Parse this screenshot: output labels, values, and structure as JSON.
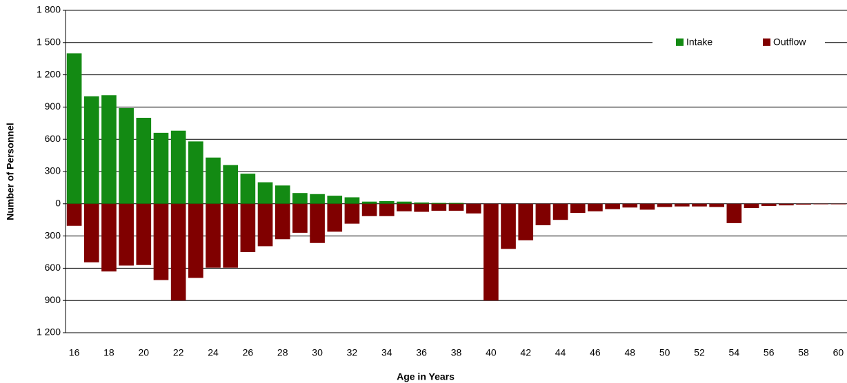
{
  "chart_data": {
    "type": "bar",
    "x_label": "Age in Years",
    "y_label": "Number of Personnel",
    "categories": [
      16,
      null,
      18,
      null,
      20,
      null,
      22,
      null,
      24,
      null,
      26,
      null,
      28,
      null,
      30,
      null,
      32,
      null,
      34,
      null,
      36,
      null,
      38,
      null,
      40,
      null,
      42,
      null,
      44,
      null,
      46,
      null,
      48,
      null,
      50,
      null,
      52,
      null,
      54,
      null,
      56,
      null,
      58,
      null,
      60
    ],
    "series": [
      {
        "name": "Intake",
        "color": "#138a13",
        "values": [
          1400,
          1000,
          1010,
          890,
          800,
          660,
          680,
          580,
          430,
          360,
          280,
          200,
          170,
          100,
          90,
          75,
          60,
          20,
          25,
          20,
          12,
          8,
          8,
          0,
          0,
          0,
          0,
          0,
          0,
          0,
          0,
          0,
          0,
          0,
          0,
          0,
          0,
          0,
          0,
          0,
          0,
          0,
          0,
          0,
          0
        ]
      },
      {
        "name": "Outflow",
        "color": "#800000",
        "values": [
          -205,
          -545,
          -630,
          -575,
          -570,
          -710,
          -900,
          -690,
          -595,
          -595,
          -450,
          -395,
          -330,
          -270,
          -365,
          -260,
          -185,
          -115,
          -115,
          -70,
          -75,
          -65,
          -65,
          -90,
          -900,
          -420,
          -340,
          -200,
          -150,
          -85,
          -70,
          -50,
          -35,
          -55,
          -30,
          -25,
          -25,
          -30,
          -180,
          -40,
          -20,
          -15,
          -8,
          -5,
          -5
        ]
      }
    ],
    "ylim": [
      -1200,
      1800
    ],
    "yticks": [
      {
        "value": 1800,
        "label": "1 800"
      },
      {
        "value": 1500,
        "label": "1 500"
      },
      {
        "value": 1200,
        "label": "1 200"
      },
      900,
      600,
      300,
      0,
      {
        "value": -300,
        "label": "300"
      },
      {
        "value": -600,
        "label": "600"
      },
      {
        "value": -900,
        "label": "900"
      },
      {
        "value": -1200,
        "label": "1 200"
      }
    ],
    "grid": true,
    "legend": "upper right"
  }
}
